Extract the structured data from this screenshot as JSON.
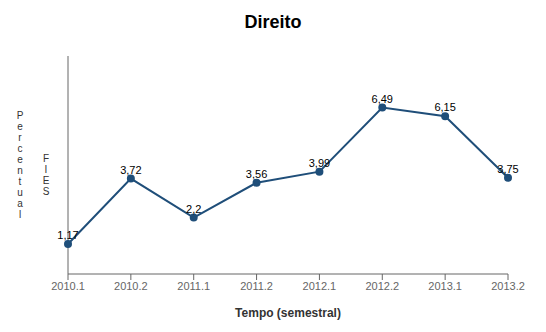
{
  "chart_data": {
    "type": "line",
    "title": "Direito",
    "xlabel": "Tempo (semestral)",
    "ylabel": "P\ne\nr\nc\ne\nn\nt\nu\na\nl",
    "annotations": [
      "F\nI\nE\nS"
    ],
    "categories": [
      "2010.1",
      "2010.2",
      "2011.1",
      "2011.2",
      "2012.1",
      "2012.2",
      "2013.1",
      "2013.2"
    ],
    "values": [
      1.17,
      3.72,
      2.2,
      3.56,
      3.99,
      6.49,
      6.15,
      3.75
    ],
    "value_labels": [
      "1,17",
      "3,72",
      "2,2",
      "3,56",
      "3,99",
      "6,49",
      "6,15",
      "3,75"
    ],
    "color": "#1F4E79",
    "marker": "circle",
    "ylim": [
      0,
      8.5
    ],
    "grid": false,
    "data_labels": true,
    "tick_labels": "x"
  }
}
